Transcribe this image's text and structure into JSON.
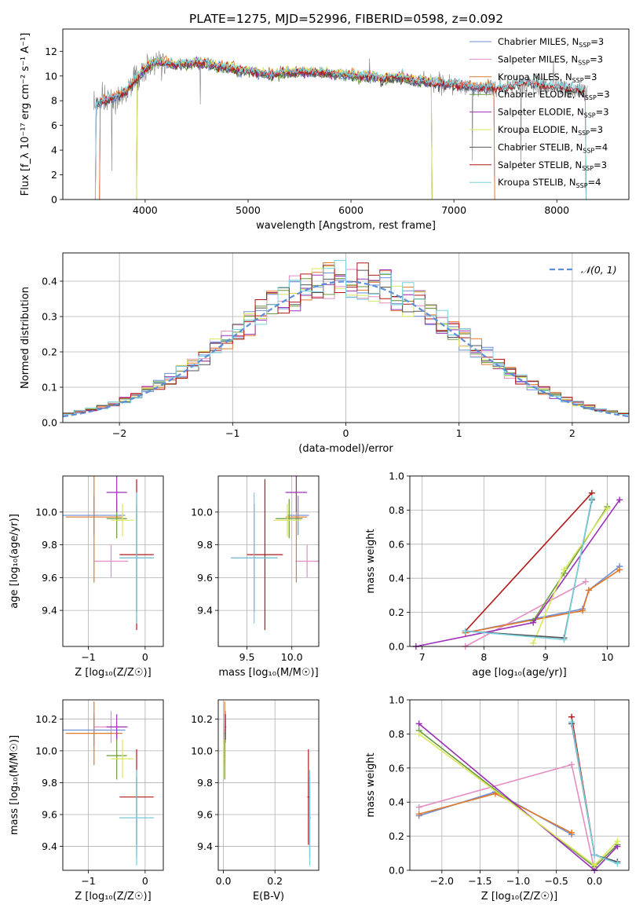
{
  "figure": {
    "title": "PLATE=1275, MJD=52996, FIBERID=0598, z=0.092"
  },
  "colors": {
    "Chabrier MILES": "#6f8fd8",
    "Salpeter MILES": "#e58cc2",
    "Kroupa MILES": "#e0782a",
    "Chabrier ELODIE": "#6b9a3c",
    "Salpeter ELODIE": "#9b30b8",
    "Kroupa ELODIE": "#d8e85a",
    "Chabrier STELIB": "#555555",
    "Salpeter STELIB": "#b01818",
    "Kroupa STELIB": "#78d0e0",
    "normal": "#5b8fd9",
    "data": "#808080"
  },
  "chart_data": [
    {
      "id": "spectrum",
      "type": "line",
      "xlabel": "wavelength [Angstrom, rest frame]",
      "ylabel": "Flux [f_λ 10⁻¹⁷ erg cm⁻² s⁻¹ A⁻¹]",
      "xlim": [
        3200,
        8700
      ],
      "ylim": [
        0,
        13.8
      ],
      "xticks": [
        4000,
        5000,
        6000,
        7000,
        8000
      ],
      "yticks": [
        0,
        2,
        4,
        6,
        8,
        10,
        12
      ],
      "grid": false,
      "legend_position": "upper-right",
      "legend": [
        {
          "model": "Chabrier MILES",
          "label": "Chabrier MILES, N",
          "n": "=3"
        },
        {
          "model": "Salpeter MILES",
          "label": "Salpeter MILES, N",
          "n": "=3"
        },
        {
          "model": "Kroupa MILES",
          "label": "Kroupa MILES, N",
          "n": "=3"
        },
        {
          "model": "Chabrier ELODIE",
          "label": "Chabrier ELODIE, N",
          "n": "=3"
        },
        {
          "model": "Salpeter ELODIE",
          "label": "Salpeter ELODIE, N",
          "n": "=3"
        },
        {
          "model": "Kroupa ELODIE",
          "label": "Kroupa ELODIE, N",
          "n": "=3"
        },
        {
          "model": "Chabrier STELIB",
          "label": "Chabrier STELIB, N",
          "n": "=4"
        },
        {
          "model": "Salpeter STELIB",
          "label": "Salpeter STELIB, N",
          "n": "=3"
        },
        {
          "model": "Kroupa STELIB",
          "label": "Kroupa STELIB, N",
          "n": "=4"
        }
      ],
      "legend_subscript": "SSP",
      "data_continuum": [
        [
          3500,
          7.6
        ],
        [
          3600,
          8.0
        ],
        [
          3700,
          8.3
        ],
        [
          3800,
          8.6
        ],
        [
          3900,
          9.6
        ],
        [
          4000,
          10.6
        ],
        [
          4100,
          11.2
        ],
        [
          4200,
          11.1
        ],
        [
          4300,
          10.9
        ],
        [
          4400,
          11.0
        ],
        [
          4500,
          11.1
        ],
        [
          4600,
          11.0
        ],
        [
          4700,
          10.8
        ],
        [
          4800,
          10.7
        ],
        [
          4900,
          10.5
        ],
        [
          5000,
          10.4
        ],
        [
          5100,
          10.3
        ],
        [
          5200,
          10.1
        ],
        [
          5300,
          10.2
        ],
        [
          5400,
          10.3
        ],
        [
          5500,
          10.3
        ],
        [
          5600,
          10.3
        ],
        [
          5700,
          10.3
        ],
        [
          5800,
          10.2
        ],
        [
          5900,
          10.1
        ],
        [
          6000,
          10.1
        ],
        [
          6100,
          10.0
        ],
        [
          6200,
          10.0
        ],
        [
          6300,
          9.8
        ],
        [
          6400,
          9.9
        ],
        [
          6500,
          9.9
        ],
        [
          6600,
          9.6
        ],
        [
          6700,
          9.6
        ],
        [
          6800,
          9.4
        ],
        [
          6900,
          9.4
        ],
        [
          7000,
          9.3
        ],
        [
          7100,
          9.2
        ],
        [
          7200,
          9.1
        ],
        [
          7300,
          9.1
        ],
        [
          7400,
          9.0
        ],
        [
          7500,
          9.1
        ],
        [
          7600,
          9.3
        ],
        [
          7700,
          9.4
        ],
        [
          7800,
          9.3
        ],
        [
          7900,
          9.2
        ],
        [
          8000,
          9.2
        ],
        [
          8100,
          9.0
        ],
        [
          8200,
          8.9
        ],
        [
          8300,
          8.8
        ]
      ],
      "model_coverage": {
        "MILES": [
          3540,
          7410
        ],
        "ELODIE": [
          3900,
          6800
        ],
        "STELIB": [
          3500,
          8300
        ]
      }
    },
    {
      "id": "residuals",
      "type": "bar",
      "xlabel": "(data-model)/error",
      "ylabel": "Normed distribution",
      "xlim": [
        -2.5,
        2.5
      ],
      "ylim": [
        0,
        0.48
      ],
      "xticks": [
        -2,
        -1,
        0,
        1,
        2
      ],
      "yticks": [
        0.0,
        0.1,
        0.2,
        0.3,
        0.4
      ],
      "grid": true,
      "legend_position": "upper-right",
      "normal_label": "𝒩(0, 1)",
      "bin_width": 0.1
    },
    {
      "id": "age-vs-Z",
      "type": "scatter",
      "xlabel": "Z [log₁₀(Z/Z☉)]",
      "ylabel": "age  [log₁₀(age/yr)]",
      "xlim": [
        -1.45,
        0.32
      ],
      "ylim": [
        9.18,
        10.22
      ],
      "xticks": [
        -1,
        0
      ],
      "yticks": [
        9.4,
        9.6,
        9.8,
        10.0
      ],
      "grid": true,
      "points": [
        {
          "model": "Chabrier MILES",
          "x": -0.9,
          "y": 9.98,
          "xerr": 0.55,
          "yerr": 0.12
        },
        {
          "model": "Salpeter MILES",
          "x": -0.6,
          "y": 9.7,
          "xerr": 0.3,
          "yerr": 0.1
        },
        {
          "model": "Kroupa MILES",
          "x": -0.9,
          "y": 9.97,
          "xerr": 0.5,
          "yerr": 0.4
        },
        {
          "model": "Chabrier ELODIE",
          "x": -0.5,
          "y": 9.96,
          "xerr": 0.18,
          "yerr": 0.12
        },
        {
          "model": "Salpeter ELODIE",
          "x": -0.5,
          "y": 10.12,
          "xerr": 0.18,
          "yerr": 0.12
        },
        {
          "model": "Kroupa ELODIE",
          "x": -0.4,
          "y": 9.95,
          "xerr": 0.2,
          "yerr": 0.1
        },
        {
          "model": "Chabrier STELIB",
          "x": -0.15,
          "y": 9.72,
          "xerr": 0.3,
          "yerr": 0.33
        },
        {
          "model": "Salpeter STELIB",
          "x": -0.15,
          "y": 9.74,
          "xerr": 0.3,
          "yerr": 0.46
        },
        {
          "model": "Kroupa STELIB",
          "x": -0.15,
          "y": 9.72,
          "xerr": 0.3,
          "yerr": 0.4
        }
      ]
    },
    {
      "id": "age-vs-mass",
      "type": "scatter",
      "xlabel": "mass [log₁₀(M/M☉)]",
      "ylabel": "",
      "xlim": [
        9.18,
        10.3
      ],
      "ylim": [
        9.18,
        10.22
      ],
      "xticks": [
        9.5,
        10.0
      ],
      "yticks": [
        9.4,
        9.6,
        9.8,
        10.0
      ],
      "grid": true,
      "points": [
        {
          "model": "Chabrier MILES",
          "x": 10.07,
          "y": 9.98,
          "xerr": 0.12,
          "yerr": 0.12
        },
        {
          "model": "Salpeter MILES",
          "x": 10.17,
          "y": 9.7,
          "xerr": 0.13,
          "yerr": 0.1
        },
        {
          "model": "Kroupa MILES",
          "x": 10.05,
          "y": 9.97,
          "xerr": 0.12,
          "yerr": 0.4
        },
        {
          "model": "Chabrier ELODIE",
          "x": 9.97,
          "y": 9.96,
          "xerr": 0.15,
          "yerr": 0.12
        },
        {
          "model": "Salpeter ELODIE",
          "x": 10.05,
          "y": 10.12,
          "xerr": 0.12,
          "yerr": 0.12
        },
        {
          "model": "Kroupa ELODIE",
          "x": 9.95,
          "y": 9.95,
          "xerr": 0.15,
          "yerr": 0.1
        },
        {
          "model": "Chabrier STELIB",
          "x": 9.58,
          "y": 9.72,
          "xerr": 0.26,
          "yerr": 0.33
        },
        {
          "model": "Salpeter STELIB",
          "x": 9.7,
          "y": 9.74,
          "xerr": 0.2,
          "yerr": 0.46
        },
        {
          "model": "Kroupa STELIB",
          "x": 9.58,
          "y": 9.72,
          "xerr": 0.26,
          "yerr": 0.4
        }
      ]
    },
    {
      "id": "massweight-vs-age",
      "type": "line",
      "xlabel": "age  [log₁₀(age/yr)]",
      "ylabel": "mass weight",
      "xlim": [
        6.8,
        10.35
      ],
      "ylim": [
        0,
        1
      ],
      "xticks": [
        7,
        8,
        9,
        10
      ],
      "yticks": [
        0.0,
        0.2,
        0.4,
        0.6,
        0.8,
        1.0
      ],
      "grid": true,
      "series": [
        {
          "model": "Chabrier MILES",
          "x": [
            7.7,
            9.6,
            9.7,
            10.2
          ],
          "y": [
            0.08,
            0.22,
            0.33,
            0.47
          ]
        },
        {
          "model": "Salpeter MILES",
          "x": [
            7.7,
            9.65
          ],
          "y": [
            0.0,
            0.38
          ]
        },
        {
          "model": "Kroupa MILES",
          "x": [
            7.7,
            9.6,
            9.7,
            10.2
          ],
          "y": [
            0.08,
            0.21,
            0.33,
            0.45
          ]
        },
        {
          "model": "Chabrier ELODIE",
          "x": [
            8.8,
            9.3,
            10.0
          ],
          "y": [
            0.15,
            0.43,
            0.82
          ]
        },
        {
          "model": "Salpeter ELODIE",
          "x": [
            6.9,
            8.8,
            10.2
          ],
          "y": [
            0.0,
            0.14,
            0.86
          ]
        },
        {
          "model": "Kroupa ELODIE",
          "x": [
            8.8,
            9.3,
            10.0
          ],
          "y": [
            0.02,
            0.45,
            0.81
          ]
        },
        {
          "model": "Chabrier STELIB",
          "x": [
            7.7,
            9.3,
            9.75
          ],
          "y": [
            0.09,
            0.05,
            0.86
          ]
        },
        {
          "model": "Salpeter STELIB",
          "x": [
            7.7,
            9.75
          ],
          "y": [
            0.09,
            0.9
          ]
        },
        {
          "model": "Kroupa STELIB",
          "x": [
            7.7,
            9.3,
            9.75
          ],
          "y": [
            0.09,
            0.04,
            0.87
          ]
        }
      ]
    },
    {
      "id": "mass-vs-Z",
      "type": "scatter",
      "xlabel": "Z [log₁₀(Z/Z☉)]",
      "ylabel": "mass [log₁₀(M/M☉)]",
      "xlim": [
        -1.45,
        0.32
      ],
      "ylim": [
        9.25,
        10.32
      ],
      "xticks": [
        -1,
        0
      ],
      "yticks": [
        9.4,
        9.6,
        9.8,
        10.0,
        10.2
      ],
      "grid": true,
      "points": [
        {
          "model": "Chabrier MILES",
          "x": -0.9,
          "y": 10.13,
          "xerr": 0.55,
          "yerr": 0.1
        },
        {
          "model": "Salpeter MILES",
          "x": -0.6,
          "y": 10.15,
          "xerr": 0.3,
          "yerr": 0.1
        },
        {
          "model": "Kroupa MILES",
          "x": -0.9,
          "y": 10.11,
          "xerr": 0.5,
          "yerr": 0.2
        },
        {
          "model": "Chabrier ELODIE",
          "x": -0.5,
          "y": 9.97,
          "xerr": 0.18,
          "yerr": 0.15
        },
        {
          "model": "Salpeter ELODIE",
          "x": -0.5,
          "y": 10.15,
          "xerr": 0.18,
          "yerr": 0.08
        },
        {
          "model": "Kroupa ELODIE",
          "x": -0.4,
          "y": 9.95,
          "xerr": 0.2,
          "yerr": 0.12
        },
        {
          "model": "Chabrier STELIB",
          "x": -0.15,
          "y": 9.58,
          "xerr": 0.3,
          "yerr": 0.25
        },
        {
          "model": "Salpeter STELIB",
          "x": -0.15,
          "y": 9.71,
          "xerr": 0.3,
          "yerr": 0.3
        },
        {
          "model": "Kroupa STELIB",
          "x": -0.15,
          "y": 9.58,
          "xerr": 0.3,
          "yerr": 0.3
        }
      ]
    },
    {
      "id": "mass-vs-ebv",
      "type": "scatter",
      "xlabel": "E(B-V)",
      "ylabel": "",
      "xlim": [
        -0.02,
        0.37
      ],
      "ylim": [
        9.25,
        10.32
      ],
      "xticks": [
        0.0,
        0.2
      ],
      "yticks": [
        9.4,
        9.6,
        9.8,
        10.0,
        10.2
      ],
      "grid": true,
      "points": [
        {
          "model": "Chabrier MILES",
          "x": 0.005,
          "y": 10.13,
          "xerr": 0.003,
          "yerr": 0.1
        },
        {
          "model": "Salpeter MILES",
          "x": 0.008,
          "y": 10.15,
          "xerr": 0.003,
          "yerr": 0.1
        },
        {
          "model": "Kroupa MILES",
          "x": 0.005,
          "y": 10.11,
          "xerr": 0.003,
          "yerr": 0.2
        },
        {
          "model": "Chabrier ELODIE",
          "x": 0.005,
          "y": 9.97,
          "xerr": 0.003,
          "yerr": 0.15
        },
        {
          "model": "Salpeter ELODIE",
          "x": 0.008,
          "y": 10.15,
          "xerr": 0.003,
          "yerr": 0.08
        },
        {
          "model": "Kroupa ELODIE",
          "x": 0.002,
          "y": 9.95,
          "xerr": 0.003,
          "yerr": 0.12
        },
        {
          "model": "Chabrier STELIB",
          "x": 0.335,
          "y": 9.58,
          "xerr": 0.004,
          "yerr": 0.25
        },
        {
          "model": "Salpeter STELIB",
          "x": 0.33,
          "y": 9.71,
          "xerr": 0.004,
          "yerr": 0.3
        },
        {
          "model": "Kroupa STELIB",
          "x": 0.335,
          "y": 9.58,
          "xerr": 0.004,
          "yerr": 0.3
        }
      ]
    },
    {
      "id": "massweight-vs-Z",
      "type": "line",
      "xlabel": "Z [log₁₀(Z/Z☉)]",
      "ylabel": "mass weight",
      "xlim": [
        -2.42,
        0.45
      ],
      "ylim": [
        0,
        1
      ],
      "xticks": [
        -2.0,
        -1.5,
        -1.0,
        -0.5,
        0.0
      ],
      "yticks": [
        0.0,
        0.2,
        0.4,
        0.6,
        0.8,
        1.0
      ],
      "grid": true,
      "series": [
        {
          "model": "Chabrier MILES",
          "x": [
            -2.3,
            -1.3,
            -0.3
          ],
          "y": [
            0.32,
            0.46,
            0.21
          ]
        },
        {
          "model": "Salpeter MILES",
          "x": [
            -2.3,
            -0.3,
            0.0
          ],
          "y": [
            0.37,
            0.62,
            0.0
          ]
        },
        {
          "model": "Kroupa MILES",
          "x": [
            -2.3,
            -1.3,
            -0.3
          ],
          "y": [
            0.33,
            0.45,
            0.22
          ]
        },
        {
          "model": "Chabrier ELODIE",
          "x": [
            -2.3,
            0.0,
            0.3
          ],
          "y": [
            0.82,
            0.02,
            0.15
          ]
        },
        {
          "model": "Salpeter ELODIE",
          "x": [
            -2.3,
            0.0,
            0.3
          ],
          "y": [
            0.86,
            0.0,
            0.14
          ]
        },
        {
          "model": "Kroupa ELODIE",
          "x": [
            -2.3,
            0.0,
            0.3
          ],
          "y": [
            0.8,
            0.03,
            0.17
          ]
        },
        {
          "model": "Chabrier STELIB",
          "x": [
            -0.3,
            0.0,
            0.3
          ],
          "y": [
            0.86,
            0.09,
            0.05
          ]
        },
        {
          "model": "Salpeter STELIB",
          "x": [
            -0.3,
            0.0
          ],
          "y": [
            0.9,
            0.09
          ]
        },
        {
          "model": "Kroupa STELIB",
          "x": [
            -0.3,
            0.0,
            0.3
          ],
          "y": [
            0.87,
            0.09,
            0.04
          ]
        }
      ]
    }
  ]
}
